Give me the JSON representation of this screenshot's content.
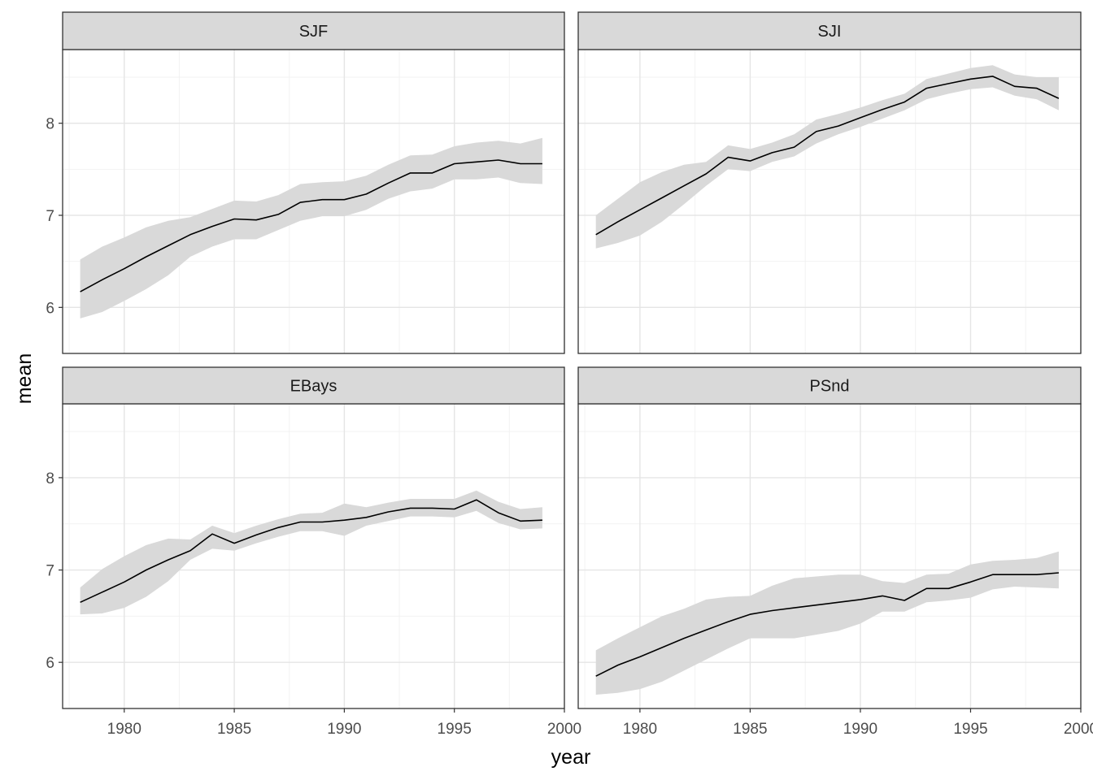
{
  "chart_data": {
    "type": "line",
    "layout": "facet-grid 2x2",
    "xlabel": "year",
    "ylabel": "mean",
    "xlim": [
      1977.2,
      2000
    ],
    "ylim": [
      5.5,
      8.8
    ],
    "x_ticks": [
      1980,
      1985,
      1990,
      1995,
      2000
    ],
    "y_ticks": [
      6,
      7,
      8
    ],
    "grid": true,
    "confidence_band": true,
    "x": [
      1978,
      1979,
      1980,
      1981,
      1982,
      1983,
      1984,
      1985,
      1986,
      1987,
      1988,
      1989,
      1990,
      1991,
      1992,
      1993,
      1994,
      1995,
      1996,
      1997,
      1998,
      1999
    ],
    "panels": [
      {
        "name": "SJF",
        "values": [
          6.17,
          6.3,
          6.42,
          6.55,
          6.67,
          6.79,
          6.88,
          6.96,
          6.95,
          7.01,
          7.14,
          7.17,
          7.17,
          7.23,
          7.35,
          7.46,
          7.46,
          7.56,
          7.58,
          7.6,
          7.56,
          7.56
        ],
        "lower": [
          5.88,
          5.95,
          6.07,
          6.2,
          6.35,
          6.55,
          6.66,
          6.74,
          6.74,
          6.84,
          6.94,
          6.99,
          6.99,
          7.06,
          7.18,
          7.26,
          7.29,
          7.39,
          7.39,
          7.41,
          7.35,
          7.34
        ],
        "upper": [
          6.52,
          6.66,
          6.76,
          6.87,
          6.94,
          6.98,
          7.07,
          7.16,
          7.15,
          7.22,
          7.34,
          7.36,
          7.37,
          7.43,
          7.55,
          7.65,
          7.66,
          7.75,
          7.79,
          7.81,
          7.78,
          7.84
        ]
      },
      {
        "name": "SJI",
        "values": [
          6.79,
          6.93,
          7.06,
          7.19,
          7.32,
          7.45,
          7.63,
          7.59,
          7.68,
          7.74,
          7.91,
          7.97,
          8.06,
          8.15,
          8.23,
          8.38,
          8.43,
          8.48,
          8.51,
          8.4,
          8.38,
          8.27
        ],
        "lower": [
          6.64,
          6.7,
          6.78,
          6.93,
          7.12,
          7.32,
          7.5,
          7.48,
          7.58,
          7.64,
          7.78,
          7.88,
          7.96,
          8.05,
          8.14,
          8.26,
          8.32,
          8.37,
          8.39,
          8.3,
          8.26,
          8.14
        ],
        "upper": [
          7.0,
          7.18,
          7.36,
          7.47,
          7.55,
          7.58,
          7.76,
          7.72,
          7.79,
          7.88,
          8.04,
          8.1,
          8.17,
          8.25,
          8.32,
          8.48,
          8.54,
          8.6,
          8.63,
          8.53,
          8.5,
          8.5
        ]
      },
      {
        "name": "EBays",
        "values": [
          6.65,
          6.76,
          6.87,
          7.0,
          7.11,
          7.21,
          7.39,
          7.29,
          7.38,
          7.46,
          7.52,
          7.52,
          7.54,
          7.57,
          7.63,
          7.67,
          7.67,
          7.66,
          7.76,
          7.62,
          7.53,
          7.54
        ],
        "lower": [
          6.52,
          6.53,
          6.59,
          6.71,
          6.88,
          7.11,
          7.23,
          7.21,
          7.29,
          7.36,
          7.42,
          7.42,
          7.37,
          7.48,
          7.53,
          7.58,
          7.58,
          7.57,
          7.64,
          7.51,
          7.44,
          7.45
        ],
        "upper": [
          6.81,
          7.01,
          7.15,
          7.27,
          7.34,
          7.33,
          7.48,
          7.4,
          7.48,
          7.55,
          7.61,
          7.62,
          7.72,
          7.68,
          7.73,
          7.77,
          7.77,
          7.77,
          7.86,
          7.74,
          7.66,
          7.68
        ]
      },
      {
        "name": "PSnd",
        "values": [
          5.85,
          5.97,
          6.06,
          6.16,
          6.26,
          6.35,
          6.44,
          6.52,
          6.56,
          6.59,
          6.62,
          6.65,
          6.68,
          6.72,
          6.67,
          6.8,
          6.8,
          6.87,
          6.95,
          6.95,
          6.95,
          6.97
        ],
        "lower": [
          5.65,
          5.67,
          5.71,
          5.79,
          5.91,
          6.03,
          6.15,
          6.26,
          6.26,
          6.26,
          6.3,
          6.34,
          6.42,
          6.55,
          6.55,
          6.65,
          6.67,
          6.7,
          6.79,
          6.82,
          6.81,
          6.8
        ],
        "upper": [
          6.13,
          6.26,
          6.38,
          6.5,
          6.58,
          6.68,
          6.71,
          6.72,
          6.83,
          6.91,
          6.93,
          6.95,
          6.95,
          6.88,
          6.86,
          6.95,
          6.96,
          7.06,
          7.1,
          7.11,
          7.13,
          7.2
        ]
      }
    ]
  }
}
